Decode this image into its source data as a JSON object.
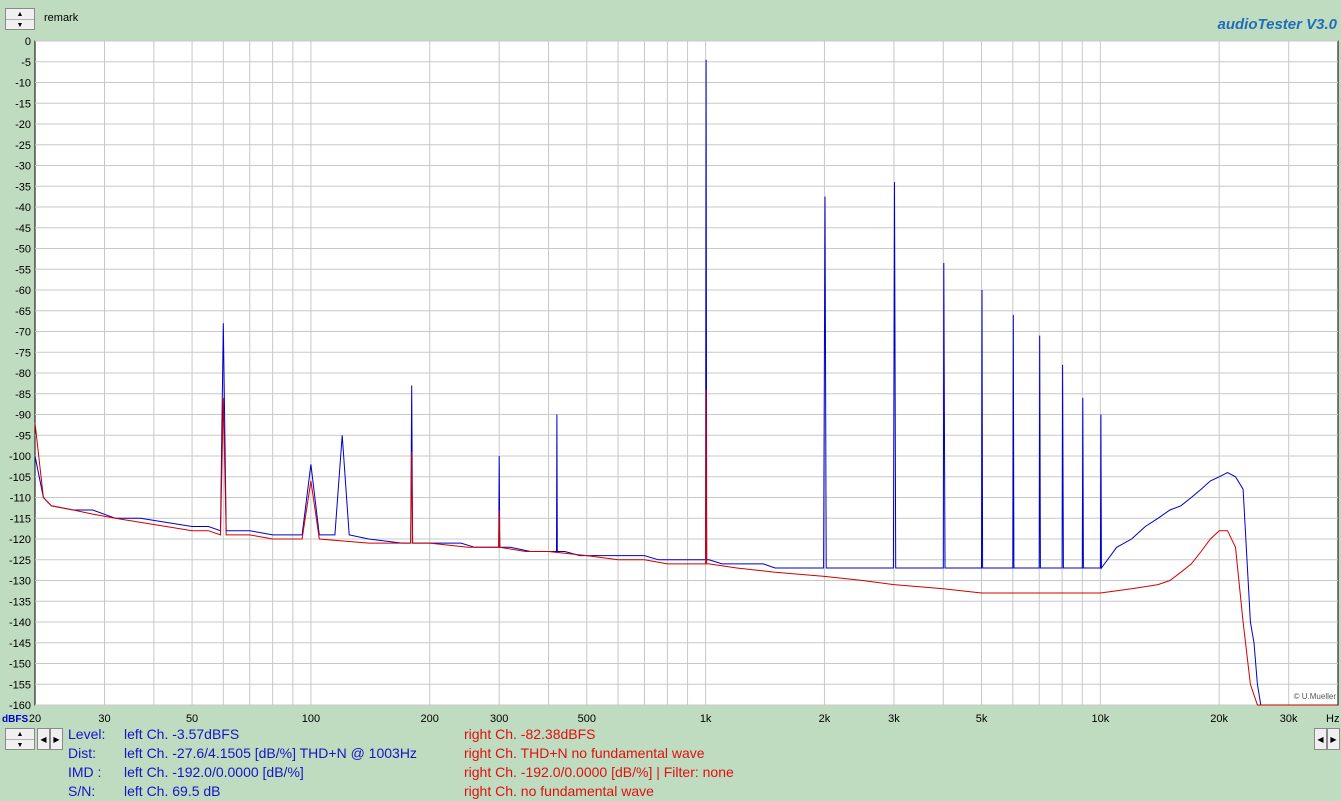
{
  "header": {
    "remark_label": "remark",
    "brand": "audioTester  V3.0"
  },
  "credit": "© U.Mueller",
  "colors": {
    "background": "#c0dcc0",
    "plot_background": "#ffffff",
    "grid": "#c8c8c8",
    "left_channel": "#0000c8",
    "right_channel": "#d00000"
  },
  "stats": {
    "level_label": "Level:",
    "level_left": "left Ch. -3.57dBFS",
    "level_right": "right Ch. -82.38dBFS",
    "dist_label": "Dist:",
    "dist_left": "left Ch. -27.6/4.1505 [dB/%] THD+N  @ 1003Hz",
    "dist_right": "right Ch. THD+N  no fundamental wave",
    "imd_label": "IMD  :",
    "imd_left": "left Ch. -192.0/0.0000 [dB/%]",
    "imd_right": "right Ch. -192.0/0.0000 [dB/%] |   Filter: none",
    "sn_label": "S/N:",
    "sn_left": "left Ch. 69.5 dB",
    "sn_right": "right Ch.  no fundamental wave"
  },
  "chart_data": {
    "type": "line",
    "xscale": "log",
    "xlim": [
      20,
      40000
    ],
    "ylim": [
      -160,
      0
    ],
    "grid": true,
    "ylabel": "dBFS",
    "xunit": "Hz",
    "y_ticks": [
      0,
      -5,
      -10,
      -15,
      -20,
      -25,
      -30,
      -35,
      -40,
      -45,
      -50,
      -55,
      -60,
      -65,
      -70,
      -75,
      -80,
      -85,
      -90,
      -95,
      -100,
      -105,
      -110,
      -115,
      -120,
      -125,
      -130,
      -135,
      -140,
      -145,
      -150,
      -155,
      -160
    ],
    "x_ticks": [
      {
        "value": 20,
        "label": "20"
      },
      {
        "value": 30,
        "label": "30"
      },
      {
        "value": 50,
        "label": "50"
      },
      {
        "value": 100,
        "label": "100"
      },
      {
        "value": 200,
        "label": "200"
      },
      {
        "value": 300,
        "label": "300"
      },
      {
        "value": 500,
        "label": "500"
      },
      {
        "value": 1000,
        "label": "1k"
      },
      {
        "value": 2000,
        "label": "2k"
      },
      {
        "value": 3000,
        "label": "3k"
      },
      {
        "value": 5000,
        "label": "5k"
      },
      {
        "value": 10000,
        "label": "10k"
      },
      {
        "value": 20000,
        "label": "20k"
      },
      {
        "value": 30000,
        "label": "30k"
      }
    ],
    "series": [
      {
        "color": "#0000c8",
        "x": [
          20,
          21,
          22,
          25,
          28,
          32,
          37,
          43,
          50,
          55,
          59,
          60,
          61,
          63,
          70,
          80,
          95,
          100,
          105,
          115,
          120,
          125,
          140,
          170,
          179,
          180,
          181,
          190,
          220,
          240,
          260,
          290,
          299,
          300,
          301,
          320,
          360,
          400,
          419,
          420,
          421,
          440,
          480,
          560,
          600,
          620,
          650,
          700,
          760,
          800,
          850,
          900,
          950,
          990,
          1000,
          1003,
          1006,
          1020,
          1100,
          1200,
          1300,
          1400,
          1500,
          1600,
          1700,
          1800,
          1900,
          1990,
          2006,
          2020,
          2100,
          2200,
          2300,
          2400,
          2500,
          2600,
          2700,
          2800,
          2900,
          2990,
          3009,
          3030,
          3200,
          3400,
          3600,
          3800,
          4000,
          4012,
          4040,
          4300,
          4600,
          4900,
          5000,
          5015,
          5030,
          5500,
          6000,
          6018,
          6040,
          6600,
          7000,
          7021,
          7050,
          7600,
          8000,
          8024,
          8060,
          8600,
          9000,
          9027,
          9060,
          9600,
          10000,
          10030,
          10060,
          11000,
          12000,
          13000,
          14000,
          15000,
          16000,
          17000,
          18000,
          19000,
          20000,
          21000,
          22000,
          23000,
          24000,
          24500,
          25000,
          25500,
          26000,
          26500,
          27000,
          40000
        ],
        "y": [
          -100,
          -110,
          -112,
          -113,
          -113,
          -115,
          -115,
          -116,
          -117,
          -117,
          -118,
          -68,
          -118,
          -118,
          -118,
          -119,
          -119,
          -102,
          -119,
          -119,
          -95,
          -119,
          -120,
          -121,
          -121,
          -83,
          -121,
          -121,
          -121,
          -121,
          -122,
          -122,
          -122,
          -100,
          -122,
          -122,
          -123,
          -123,
          -123,
          -90,
          -123,
          -123,
          -124,
          -124,
          -124,
          -124,
          -124,
          -124,
          -125,
          -125,
          -125,
          -125,
          -125,
          -125,
          -125,
          -4.5,
          -125,
          -125,
          -126,
          -126,
          -126,
          -126,
          -127,
          -127,
          -127,
          -127,
          -127,
          -127,
          -37.5,
          -127,
          -127,
          -127,
          -127,
          -127,
          -127,
          -127,
          -127,
          -127,
          -127,
          -127,
          -34,
          -127,
          -127,
          -127,
          -127,
          -127,
          -127,
          -53.5,
          -127,
          -127,
          -127,
          -127,
          -127,
          -60,
          -127,
          -127,
          -127,
          -66,
          -127,
          -127,
          -127,
          -71,
          -127,
          -127,
          -127,
          -78,
          -127,
          -127,
          -127,
          -86,
          -127,
          -127,
          -127,
          -90,
          -127,
          -122,
          -120,
          -117,
          -115,
          -113,
          -112,
          -110,
          -108,
          -106,
          -105,
          -104,
          -105,
          -108,
          -140,
          -145,
          -155,
          -160,
          -160,
          -160,
          -160,
          -160
        ]
      },
      {
        "color": "#d00000",
        "x": [
          20,
          21,
          22,
          25,
          28,
          32,
          37,
          43,
          50,
          55,
          59,
          60,
          61,
          63,
          70,
          80,
          95,
          100,
          105,
          140,
          170,
          179,
          180,
          181,
          200,
          250,
          290,
          299,
          300,
          301,
          350,
          400,
          500,
          600,
          700,
          800,
          900,
          990,
          1000,
          1003,
          1006,
          1020,
          1200,
          1500,
          2000,
          2500,
          3000,
          4000,
          5000,
          6000,
          8000,
          10000,
          12000,
          14000,
          15000,
          16000,
          17000,
          18000,
          19000,
          20000,
          21000,
          22000,
          23000,
          24000,
          25000,
          26000,
          40000
        ],
        "y": [
          -92,
          -110,
          -112,
          -113,
          -114,
          -115,
          -116,
          -117,
          -118,
          -118,
          -119,
          -86,
          -119,
          -119,
          -119,
          -120,
          -120,
          -106,
          -120,
          -121,
          -121,
          -121,
          -99,
          -121,
          -121,
          -122,
          -122,
          -122,
          -113,
          -122,
          -123,
          -123,
          -124,
          -125,
          -125,
          -126,
          -126,
          -126,
          -126,
          -84,
          -126,
          -126,
          -127,
          -128,
          -129,
          -130,
          -131,
          -132,
          -133,
          -133,
          -133,
          -133,
          -132,
          -131,
          -130,
          -128,
          -126,
          -123,
          -120,
          -118,
          -118,
          -122,
          -140,
          -155,
          -160,
          -160,
          -160
        ]
      }
    ]
  }
}
